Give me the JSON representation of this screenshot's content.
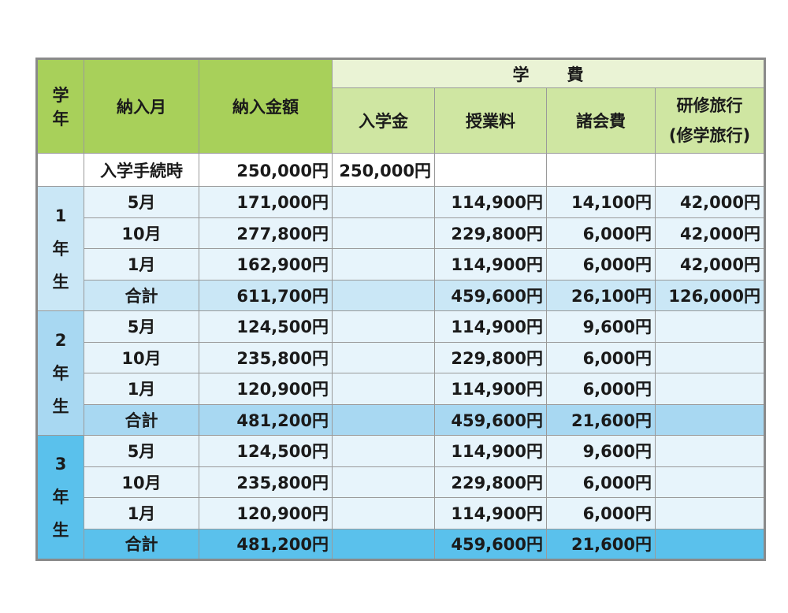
{
  "header": {
    "year_char1": "学",
    "year_char2": "年",
    "month": "納入月",
    "amount": "納入金額",
    "fees_char1": "学",
    "fees_char2": "費",
    "entrance": "入学金",
    "tuition": "授業料",
    "misc": "諸会費",
    "trip_line1": "研修旅行",
    "trip_line2": "(修学旅行)"
  },
  "admission": {
    "label": "入学手続時",
    "amount": "250,000円",
    "entrance": "250,000円"
  },
  "years": [
    {
      "digit": "1",
      "kanji1": "年",
      "kanji2": "生",
      "rows": [
        {
          "month": "5月",
          "amount": "171,000円",
          "entrance": "",
          "tuition": "114,900円",
          "misc": "14,100円",
          "trip": "42,000円"
        },
        {
          "month": "10月",
          "amount": "277,800円",
          "entrance": "",
          "tuition": "229,800円",
          "misc": "6,000円",
          "trip": "42,000円"
        },
        {
          "month": "1月",
          "amount": "162,900円",
          "entrance": "",
          "tuition": "114,900円",
          "misc": "6,000円",
          "trip": "42,000円"
        },
        {
          "month": "合計",
          "amount": "611,700円",
          "entrance": "",
          "tuition": "459,600円",
          "misc": "26,100円",
          "trip": "126,000円"
        }
      ]
    },
    {
      "digit": "2",
      "kanji1": "年",
      "kanji2": "生",
      "rows": [
        {
          "month": "5月",
          "amount": "124,500円",
          "entrance": "",
          "tuition": "114,900円",
          "misc": "9,600円",
          "trip": ""
        },
        {
          "month": "10月",
          "amount": "235,800円",
          "entrance": "",
          "tuition": "229,800円",
          "misc": "6,000円",
          "trip": ""
        },
        {
          "month": "1月",
          "amount": "120,900円",
          "entrance": "",
          "tuition": "114,900円",
          "misc": "6,000円",
          "trip": ""
        },
        {
          "month": "合計",
          "amount": "481,200円",
          "entrance": "",
          "tuition": "459,600円",
          "misc": "21,600円",
          "trip": ""
        }
      ]
    },
    {
      "digit": "3",
      "kanji1": "年",
      "kanji2": "生",
      "rows": [
        {
          "month": "5月",
          "amount": "124,500円",
          "entrance": "",
          "tuition": "114,900円",
          "misc": "9,600円",
          "trip": ""
        },
        {
          "month": "10月",
          "amount": "235,800円",
          "entrance": "",
          "tuition": "229,800円",
          "misc": "6,000円",
          "trip": ""
        },
        {
          "month": "1月",
          "amount": "120,900円",
          "entrance": "",
          "tuition": "114,900円",
          "misc": "6,000円",
          "trip": ""
        },
        {
          "month": "合計",
          "amount": "481,200円",
          "entrance": "",
          "tuition": "459,600円",
          "misc": "21,600円",
          "trip": ""
        }
      ]
    }
  ]
}
